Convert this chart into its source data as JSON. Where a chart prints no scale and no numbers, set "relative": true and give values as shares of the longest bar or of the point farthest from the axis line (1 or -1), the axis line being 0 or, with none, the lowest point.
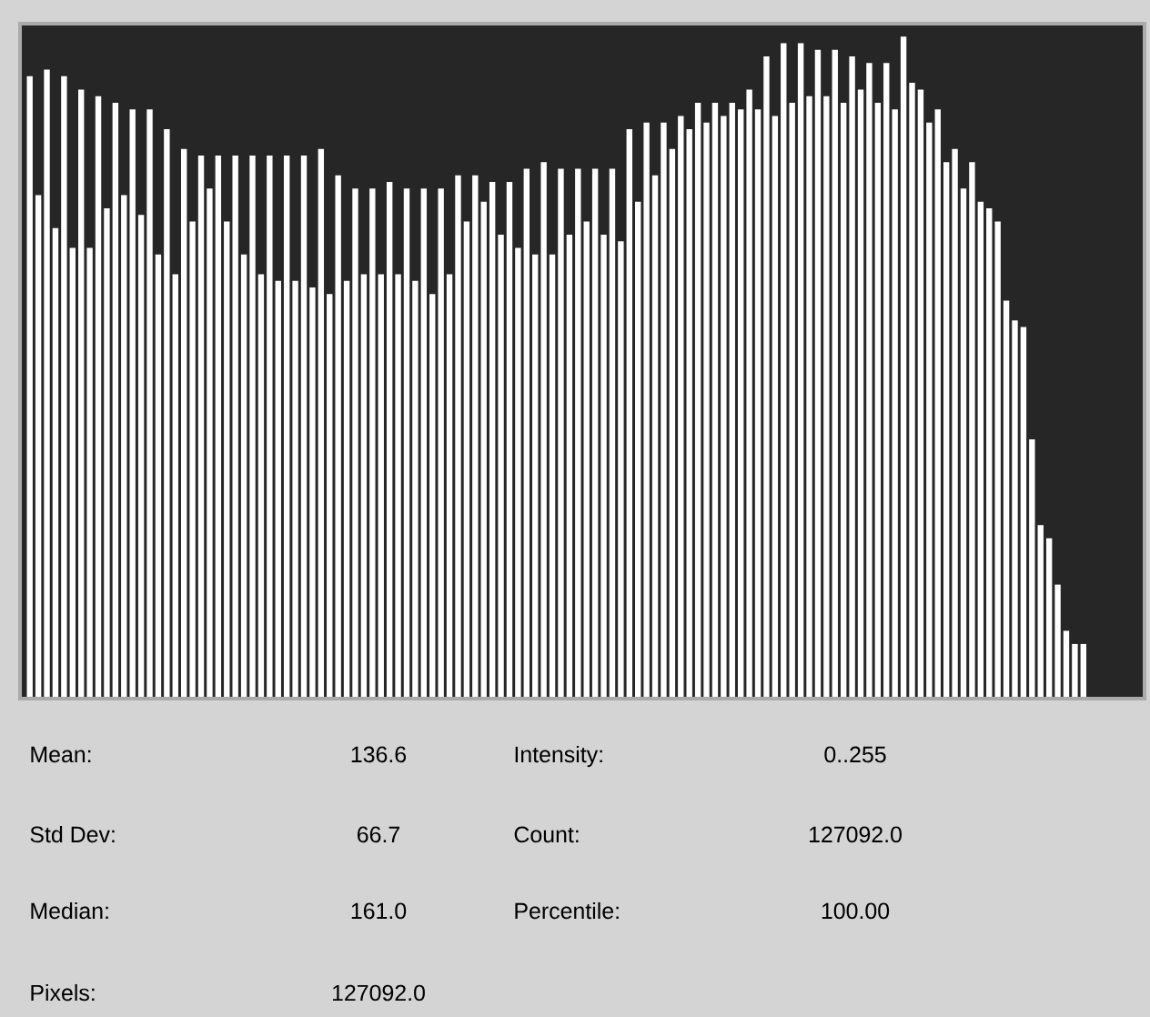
{
  "chart_data": {
    "type": "bar",
    "relative": true,
    "color": "#ffffff",
    "categories": [
      null,
      null,
      null,
      null,
      null,
      null,
      null,
      null,
      null,
      null,
      null,
      null,
      null,
      null,
      null,
      null,
      null,
      null,
      null,
      null,
      null,
      null,
      null,
      null,
      null,
      null,
      null,
      null,
      null,
      null,
      null,
      null,
      null,
      null,
      null,
      null,
      null,
      null,
      null,
      null,
      null,
      null,
      null,
      null,
      null,
      null,
      null,
      null,
      null,
      null,
      null,
      null,
      null,
      null,
      null,
      null,
      null,
      null,
      null,
      null,
      null,
      null,
      null,
      null,
      null,
      null,
      null,
      null,
      null,
      null,
      null,
      null,
      null,
      null,
      null,
      null,
      null,
      null,
      null,
      null,
      null,
      null,
      null,
      null,
      null,
      null,
      null,
      null,
      null,
      null,
      null,
      null,
      null,
      null,
      null,
      null,
      null,
      null,
      null,
      null,
      null,
      null,
      null,
      null,
      null,
      null,
      null,
      null,
      null,
      null,
      null,
      null,
      null,
      null,
      null,
      null,
      null,
      null,
      null,
      null,
      null,
      null,
      null,
      null
    ],
    "values": [
      0.94,
      0.76,
      0.95,
      0.71,
      0.94,
      0.68,
      0.92,
      0.68,
      0.91,
      0.74,
      0.9,
      0.76,
      0.89,
      0.73,
      0.89,
      0.67,
      0.86,
      0.64,
      0.83,
      0.72,
      0.82,
      0.77,
      0.82,
      0.72,
      0.82,
      0.67,
      0.82,
      0.64,
      0.82,
      0.63,
      0.82,
      0.63,
      0.82,
      0.62,
      0.83,
      0.61,
      0.79,
      0.63,
      0.77,
      0.64,
      0.77,
      0.64,
      0.78,
      0.64,
      0.77,
      0.63,
      0.77,
      0.61,
      0.77,
      0.64,
      0.79,
      0.72,
      0.79,
      0.75,
      0.78,
      0.7,
      0.78,
      0.68,
      0.8,
      0.67,
      0.81,
      0.67,
      0.8,
      0.7,
      0.8,
      0.72,
      0.8,
      0.7,
      0.8,
      0.69,
      0.86,
      0.75,
      0.87,
      0.79,
      0.87,
      0.83,
      0.88,
      0.86,
      0.9,
      0.87,
      0.9,
      0.88,
      0.9,
      0.89,
      0.92,
      0.89,
      0.97,
      0.88,
      0.99,
      0.9,
      0.99,
      0.91,
      0.98,
      0.91,
      0.98,
      0.9,
      0.97,
      0.92,
      0.96,
      0.9,
      0.96,
      0.89,
      1.0,
      0.93,
      0.92,
      0.87,
      0.89,
      0.81,
      0.83,
      0.77,
      0.81,
      0.75,
      0.74,
      0.72,
      0.6,
      0.57,
      0.56,
      0.39,
      0.26,
      0.24,
      0.17,
      0.1,
      0.08,
      0.08
    ],
    "annotations": [
      "Mean:",
      "136.6",
      "Intensity:",
      "0..255",
      "Std Dev:",
      "66.7",
      "Count:",
      "127092.0",
      "Median:",
      "161.0",
      "Percentile:",
      "100.00",
      "Pixels:",
      "127092.0"
    ]
  }
}
